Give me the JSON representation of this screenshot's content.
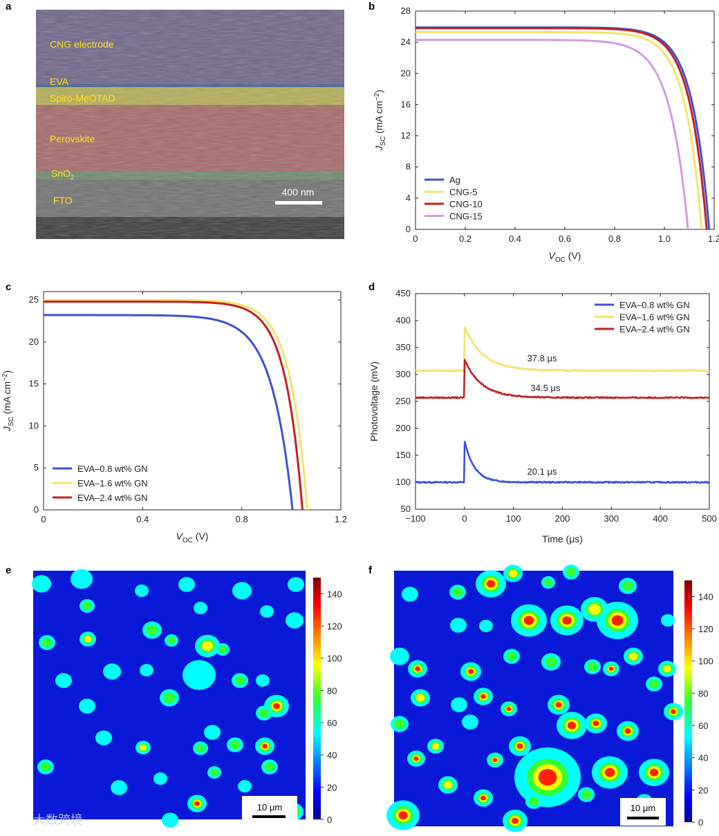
{
  "panels": {
    "a": "a",
    "b": "b",
    "c": "c",
    "d": "d",
    "e": "e",
    "f": "f"
  },
  "sem": {
    "layers": [
      {
        "name": "CNG electrode",
        "color": "#6e6388"
      },
      {
        "name": "EVA",
        "color": "#3a5f8f"
      },
      {
        "name": "Spiro-MeOTAD",
        "color": "#b4ac55"
      },
      {
        "name": "Perovskite",
        "color": "#a66868"
      },
      {
        "name": "SnO",
        "sub": "2",
        "color": "#6c8a6a"
      },
      {
        "name": "FTO",
        "color": "#6a6a6a"
      }
    ],
    "scale_bar": "400 nm"
  },
  "chart_data": [
    {
      "id": "b",
      "type": "line",
      "xlabel_main": "V",
      "xlabel_sub": "OC",
      "xlabel_unit": " (V)",
      "ylabel_main": "J",
      "ylabel_sub": "SC",
      "ylabel_unit": " (mA cm",
      "ylabel_sup": "−2",
      "ylabel_end": ")",
      "xlim": [
        0,
        1.2
      ],
      "ylim": [
        0,
        28
      ],
      "xticks": [
        "0",
        "0.2",
        "0.4",
        "0.6",
        "0.8",
        "1.0",
        "1.2"
      ],
      "yticks": [
        "0",
        "4",
        "8",
        "12",
        "16",
        "20",
        "24",
        "28"
      ],
      "legend": "bottom-left",
      "series": [
        {
          "name": "Ag",
          "color": "#3c4fd6",
          "jsc": 25.9,
          "voc": 1.18,
          "k": 17
        },
        {
          "name": "CNG-5",
          "color": "#f4e46b",
          "jsc": 25.3,
          "voc": 1.15,
          "k": 17
        },
        {
          "name": "CNG-10",
          "color": "#c41e1e",
          "jsc": 25.8,
          "voc": 1.17,
          "k": 17
        },
        {
          "name": "CNG-15",
          "color": "#cf9be6",
          "jsc": 24.3,
          "voc": 1.095,
          "k": 15
        }
      ]
    },
    {
      "id": "c",
      "type": "line",
      "xlabel_main": "V",
      "xlabel_sub": "OC",
      "xlabel_unit": " (V)",
      "ylabel_main": "J",
      "ylabel_sub": "SC",
      "ylabel_unit": " (mA cm",
      "ylabel_sup": "−2",
      "ylabel_end": ")",
      "xlim": [
        0,
        1.2
      ],
      "ylim": [
        0,
        26
      ],
      "xticks": [
        "0",
        "0.4",
        "0.8",
        "1.2"
      ],
      "yticks": [
        "0",
        "5",
        "10",
        "15",
        "20",
        "25"
      ],
      "legend": "bottom-left",
      "series": [
        {
          "name": "EVA–0.8 wt% GN",
          "color": "#3c4fd6",
          "jsc": 23.2,
          "voc": 1.005,
          "k": 12
        },
        {
          "name": "EVA–1.6 wt% GN",
          "color": "#f4e46b",
          "jsc": 25.0,
          "voc": 1.065,
          "k": 15
        },
        {
          "name": "EVA–2.4 wt% GN",
          "color": "#c41e1e",
          "jsc": 24.8,
          "voc": 1.045,
          "k": 15
        }
      ]
    },
    {
      "id": "d",
      "type": "line",
      "xlabel": "Time (μs)",
      "ylabel": "Photovoltage (mV)",
      "xlim": [
        -100,
        500
      ],
      "ylim": [
        50,
        450
      ],
      "xticks": [
        "−100",
        "0",
        "100",
        "200",
        "300",
        "400",
        "500"
      ],
      "yticks": [
        "50",
        "100",
        "150",
        "200",
        "250",
        "300",
        "350",
        "400",
        "450"
      ],
      "legend": "top-right",
      "series": [
        {
          "name": "EVA–0.8 wt% GN",
          "color": "#3c4fd6",
          "baseline": 100,
          "peak": 177,
          "tau_us": 20.1,
          "label": "20.1 μs"
        },
        {
          "name": "EVA–1.6 wt% GN",
          "color": "#f4e46b",
          "baseline": 307,
          "peak": 389,
          "tau_us": 37.8,
          "label": "37.8 μs"
        },
        {
          "name": "EVA–2.4 wt% GN",
          "color": "#c41e1e",
          "baseline": 257,
          "peak": 328,
          "tau_us": 34.5,
          "label": "34.5 μs"
        }
      ]
    },
    {
      "id": "e",
      "type": "heatmap",
      "colorbar_range": [
        0,
        150
      ],
      "colorbar_ticks": [
        "0",
        "20",
        "40",
        "60",
        "80",
        "100",
        "120",
        "140"
      ],
      "scale_bar": "10 μm"
    },
    {
      "id": "f",
      "type": "heatmap",
      "colorbar_range": [
        0,
        150
      ],
      "colorbar_ticks": [
        "0",
        "20",
        "40",
        "60",
        "80",
        "100",
        "120",
        "140"
      ],
      "scale_bar": "10 μm"
    }
  ],
  "watermark": "大数跨境"
}
